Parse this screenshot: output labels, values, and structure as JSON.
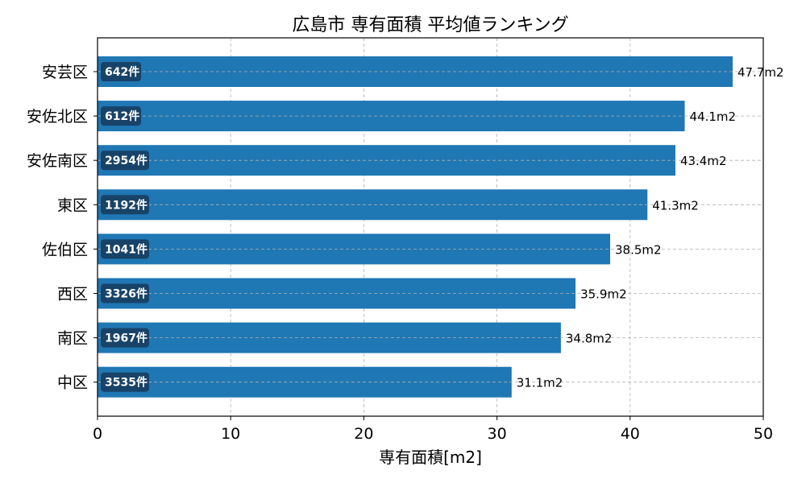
{
  "chart_data": {
    "type": "bar",
    "orientation": "horizontal",
    "title": "広島市 専有面積 平均値ランキング",
    "xlabel": "専有面積[m2]",
    "ylabel": "",
    "xlim": [
      0,
      50
    ],
    "x_ticks": [
      0,
      10,
      20,
      30,
      40,
      50
    ],
    "grid": true,
    "categories": [
      "安芸区",
      "安佐北区",
      "安佐南区",
      "東区",
      "佐伯区",
      "西区",
      "南区",
      "中区"
    ],
    "values": [
      47.7,
      44.1,
      43.4,
      41.3,
      38.5,
      35.9,
      34.8,
      31.1
    ],
    "value_labels": [
      "47.7m2",
      "44.1m2",
      "43.4m2",
      "41.3m2",
      "38.5m2",
      "35.9m2",
      "34.8m2",
      "31.1m2"
    ],
    "count_labels": [
      "642件",
      "612件",
      "2954件",
      "1192件",
      "1041件",
      "3326件",
      "1967件",
      "3535件"
    ],
    "colors": {
      "bar": "#1f77b4",
      "count_badge": "#173a5a",
      "grid": "#b0b0b0"
    }
  }
}
